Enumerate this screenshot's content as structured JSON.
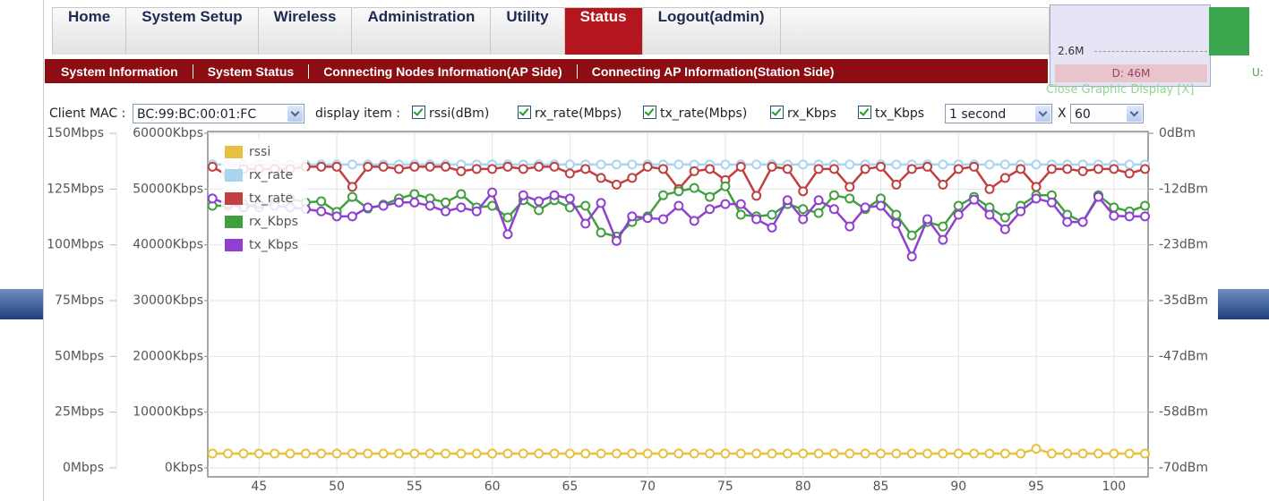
{
  "nav": {
    "tabs": [
      "Home",
      "System Setup",
      "Wireless",
      "Administration",
      "Utility",
      "Status",
      "Logout(admin)"
    ],
    "active": 5
  },
  "submenu": [
    "System Information",
    "System Status",
    "Connecting Nodes Information(AP Side)",
    "Connecting AP Information(Station Side)"
  ],
  "controls": {
    "client_mac_label": "Client MAC :",
    "client_mac": "BC:99:BC:00:01:FC",
    "display_item_label": "display item :",
    "items": [
      {
        "label": "rssi(dBm)",
        "checked": true
      },
      {
        "label": "rx_rate(Mbps)",
        "checked": true
      },
      {
        "label": "tx_rate(Mbps)",
        "checked": true
      },
      {
        "label": "rx_Kbps",
        "checked": true
      },
      {
        "label": "tx_Kbps",
        "checked": true
      }
    ],
    "interval": "1 second",
    "times_label": "X",
    "count": "60"
  },
  "graphic_display": {
    "value": "2.6M",
    "download": "D: 46M",
    "upload": "U:",
    "close": "Close Graphic Display [X]"
  },
  "chart_data": {
    "type": "line",
    "grid": true,
    "legend": "upper left",
    "x": [
      42,
      43,
      44,
      45,
      46,
      47,
      48,
      49,
      50,
      51,
      52,
      53,
      54,
      55,
      56,
      57,
      58,
      59,
      60,
      61,
      62,
      63,
      64,
      65,
      66,
      67,
      68,
      69,
      70,
      71,
      72,
      73,
      74,
      75,
      76,
      77,
      78,
      79,
      80,
      81,
      82,
      83,
      84,
      85,
      86,
      87,
      88,
      89,
      90,
      91,
      92,
      93,
      94,
      95,
      96,
      97,
      98,
      99,
      100,
      101,
      102
    ],
    "xlim": [
      41.7,
      102.2
    ],
    "xticks": [
      45,
      50,
      55,
      60,
      65,
      70,
      75,
      80,
      85,
      90,
      95,
      100
    ],
    "ylim": [
      -4,
      150
    ],
    "yticks": [
      {
        "value": 0,
        "label": "0Mbps"
      },
      {
        "value": 25,
        "label": "25Mbps"
      },
      {
        "value": 50,
        "label": "50Mbps"
      },
      {
        "value": 75,
        "label": "75Mbps"
      },
      {
        "value": 100,
        "label": "100Mbps"
      },
      {
        "value": 125,
        "label": "125Mbps"
      },
      {
        "value": 150,
        "label": "150Mbps"
      }
    ],
    "y2lim": [
      -1600,
      60000
    ],
    "y2ticks": [
      {
        "value": 0,
        "label": "0Kbps"
      },
      {
        "value": 10000,
        "label": "10000Kbps"
      },
      {
        "value": 20000,
        "label": "20000Kbps"
      },
      {
        "value": 30000,
        "label": "30000Kbps"
      },
      {
        "value": 40000,
        "label": "40000Kbps"
      },
      {
        "value": 50000,
        "label": "50000Kbps"
      },
      {
        "value": 60000,
        "label": "60000Kbps"
      }
    ],
    "y3lim": [
      -71.87,
      0
    ],
    "y3ticks": [
      {
        "value": 0,
        "label": "0dBm"
      },
      {
        "value": -11.67,
        "label": "-12dBm"
      },
      {
        "value": -23.33,
        "label": "-23dBm"
      },
      {
        "value": -35,
        "label": "-35dBm"
      },
      {
        "value": -46.67,
        "label": "-47dBm"
      },
      {
        "value": -58.33,
        "label": "-58dBm"
      },
      {
        "value": -70,
        "label": "-70dBm"
      }
    ],
    "series": [
      {
        "name": "rssi",
        "color": "#e8c040",
        "axis": "y3",
        "values": [
          -67,
          -67,
          -67,
          -67,
          -67,
          -67,
          -67,
          -67,
          -67,
          -67,
          -67,
          -67,
          -67,
          -67,
          -67,
          -67,
          -67,
          -67,
          -67,
          -67,
          -67,
          -67,
          -67,
          -67,
          -67,
          -67,
          -67,
          -67,
          -67,
          -67,
          -67,
          -67,
          -67,
          -67,
          -67,
          -67,
          -67,
          -67,
          -67,
          -67,
          -67,
          -67,
          -67,
          -67,
          -67,
          -67,
          -67,
          -67,
          -67,
          -67,
          -67,
          -67,
          -67,
          -66,
          -67,
          -67,
          -67,
          -67,
          -67,
          -67,
          -67
        ]
      },
      {
        "name": "rx_rate",
        "color": "#a8d4f0",
        "axis": "y",
        "values": [
          136,
          136,
          136,
          136,
          136,
          136,
          136,
          136,
          136,
          136,
          136,
          136,
          136,
          136,
          136,
          136,
          136,
          136,
          136,
          136,
          136,
          136,
          136,
          136,
          136,
          136,
          136,
          136,
          136,
          136,
          136,
          136,
          136,
          136,
          136,
          136,
          136,
          136,
          136,
          136,
          136,
          136,
          136,
          136,
          136,
          136,
          136,
          136,
          136,
          136,
          136,
          136,
          136,
          136,
          136,
          136,
          136,
          136,
          136,
          136,
          136
        ]
      },
      {
        "name": "tx_rate",
        "color": "#c04040",
        "axis": "y",
        "values": [
          135,
          131,
          134,
          134,
          134,
          134,
          135,
          135,
          135,
          126,
          135,
          135,
          134,
          135,
          135,
          135,
          133,
          134,
          134,
          135,
          134,
          135,
          135,
          132,
          134,
          130,
          127,
          130,
          135,
          134,
          125,
          133,
          134,
          129,
          135,
          122,
          135,
          134,
          124,
          134,
          134,
          126,
          134,
          135,
          127,
          134,
          135,
          127,
          134,
          135,
          125,
          130,
          134,
          126,
          134,
          134,
          133,
          134,
          134,
          132,
          134
        ]
      },
      {
        "name": "rx_Kbps",
        "color": "#40a040",
        "axis": "y2",
        "values": [
          47000,
          47000,
          47300,
          46700,
          47600,
          48300,
          47600,
          47800,
          45900,
          48600,
          46500,
          47200,
          48300,
          49100,
          48300,
          47600,
          49100,
          46700,
          47000,
          44900,
          48000,
          46200,
          48000,
          46700,
          47000,
          42200,
          41500,
          44100,
          45100,
          48900,
          49600,
          50200,
          48600,
          50500,
          45400,
          45100,
          45400,
          47300,
          46400,
          45700,
          48900,
          48300,
          46400,
          48300,
          45400,
          41700,
          44100,
          43300,
          47000,
          48600,
          46700,
          44900,
          47000,
          48900,
          48900,
          45400,
          44100,
          48900,
          46700,
          46000,
          47000
        ]
      },
      {
        "name": "tx_Kbps",
        "color": "#9040d0",
        "axis": "y2",
        "values": [
          48300,
          47300,
          46700,
          47300,
          47000,
          46700,
          46400,
          46000,
          45100,
          45100,
          46700,
          47000,
          47600,
          47600,
          47000,
          46000,
          46700,
          46000,
          49400,
          41900,
          48900,
          47800,
          48900,
          48300,
          43800,
          47500,
          40700,
          45100,
          44800,
          44600,
          47000,
          44300,
          46400,
          47300,
          47300,
          44600,
          43100,
          48000,
          44600,
          48000,
          46400,
          43300,
          46700,
          47000,
          43800,
          37900,
          44600,
          40900,
          45400,
          48100,
          45400,
          42800,
          46000,
          48300,
          47600,
          44100,
          44100,
          48600,
          45200,
          45100,
          45100
        ]
      }
    ]
  }
}
